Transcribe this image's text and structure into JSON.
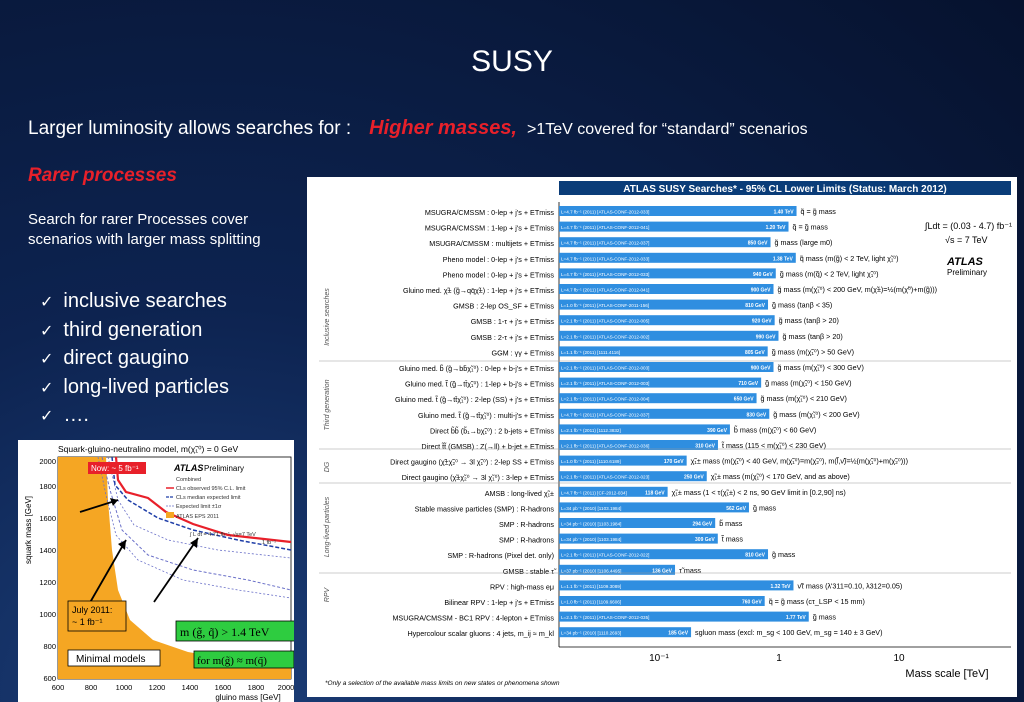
{
  "slide": {
    "title": "SUSY",
    "lum_text": "Larger luminosity allows searches for :",
    "higher_masses": "Higher masses,",
    "covered": ">1TeV covered for “standard” scenarios",
    "rarer": "Rarer processes",
    "search_line1": "Search for rarer Processes cover",
    "search_line2": "scenarios with larger mass splitting",
    "bullets": [
      "inclusive searches",
      "third generation",
      "direct gaugino",
      "long-lived particles",
      "…."
    ]
  },
  "left_plot": {
    "title": "Squark-gluino-neutralino model,  m(χ̃₁⁰) = 0 GeV",
    "ylabel": "squark mass [GeV]",
    "xlabel": "gluino mass [GeV]",
    "atlas": "ATLAS",
    "prelim": "Preliminary",
    "now_label": "Now: ~ 5 fb⁻¹",
    "july_label1": "July 2011:",
    "july_label2": "~ 1 fb⁻¹",
    "minimal": "Minimal models",
    "mass_label": "m (g̃, q̃) > 1.4 TeV",
    "for_label": "for m(g̃) ≈ m(q̃)",
    "legend": [
      "Combined",
      "CLs observed 95% C.L. limit",
      "CLs median expected limit",
      "Expected limit ±1σ",
      "ATLAS EPS 2011"
    ],
    "lumi": "∫ L dt = 4.71 fb⁻¹, √s=7 TeV",
    "lumi2": "1 fb⁻¹",
    "xticks": [
      "600",
      "800",
      "1000",
      "1200",
      "1400",
      "1600",
      "1800",
      "2000"
    ],
    "yticks": [
      "600",
      "800",
      "1000",
      "1200",
      "1400",
      "1600",
      "1800",
      "2000"
    ]
  },
  "right_plot": {
    "header": "ATLAS SUSY Searches* - 95% CL Lower Limits (Status: March 2012)",
    "lumi": "∫Ldt = (0.03 - 4.7) fb⁻¹",
    "sqrt_s": "√s = 7 TeV",
    "atlas": "ATLAS",
    "prelim": "Preliminary",
    "xlabel": "Mass scale [TeV]",
    "xticks": [
      "10⁻¹",
      "1",
      "10"
    ],
    "footnote": "*Only a selection of the available mass limits on new states or phenomena shown",
    "categories": [
      "Inclusive searches",
      "Third generation",
      "DG",
      "Long-lived particles",
      "RPV"
    ],
    "rows": [
      {
        "label": "MSUGRA/CMSSM : 0-lep + j's + ETmiss",
        "ref": "L=4.7 fb⁻¹ (2011) [ATLAS-CONF-2012-033]",
        "val": "1.40 TeV",
        "desc": "q̃ = g̃ mass",
        "tev": 1.4
      },
      {
        "label": "MSUGRA/CMSSM : 1-lep + j's + ETmiss",
        "ref": "L=4.7 fb⁻¹ (2011) [ATLAS-CONF-2012-041]",
        "val": "1.20 TeV",
        "desc": "q̃ = g̃ mass",
        "tev": 1.2
      },
      {
        "label": "MSUGRA/CMSSM : multijets + ETmiss",
        "ref": "L=4.7 fb⁻¹ (2011) [ATLAS-CONF-2012-037]",
        "val": "850 GeV",
        "desc": "g̃ mass  (large m0)",
        "tev": 0.85
      },
      {
        "label": "Pheno model : 0-lep + j's + ETmiss",
        "ref": "L=4.7 fb⁻¹ (2011) [ATLAS-CONF-2012-033]",
        "val": "1.38 TeV",
        "desc": "q̃ mass  (m(g̃) < 2 TeV, light χ̃₁⁰)",
        "tev": 1.38
      },
      {
        "label": "Pheno model : 0-lep + j's + ETmiss",
        "ref": "L=4.7 fb⁻¹ (2011) [ATLAS-CONF-2012-033]",
        "val": "940 GeV",
        "desc": "g̃ mass  (m(q̃) < 2 TeV, light χ̃₁⁰)",
        "tev": 0.94
      },
      {
        "label": "Gluino med. χ̃± (g̃→qq̄χ̃±) : 1-lep + j's + ETmiss",
        "ref": "L=4.7 fb⁻¹ (2011) [ATLAS-CONF-2012-041]",
        "val": "900 GeV",
        "desc": "g̃ mass  (m(χ̃₁⁰) < 200 GeV, m(χ̃±)=½(m(χ̃⁰)+m(g̃)))",
        "tev": 0.9
      },
      {
        "label": "GMSB : 2-lep OS_SF + ETmiss",
        "ref": "L=1.0 fb⁻¹ (2011) [ATLAS-CONF-2011-156]",
        "val": "810 GeV",
        "desc": "g̃ mass  (tanβ < 35)",
        "tev": 0.81
      },
      {
        "label": "GMSB : 1-τ + j's + ETmiss",
        "ref": "L=2.1 fb⁻¹ (2011) [ATLAS-CONF-2012-005]",
        "val": "920 GeV",
        "desc": "g̃ mass  (tanβ > 20)",
        "tev": 0.92
      },
      {
        "label": "GMSB : 2-τ + j's + ETmiss",
        "ref": "L=2.1 fb⁻¹ (2011) [ATLAS-CONF-2012-002]",
        "val": "990 GeV",
        "desc": "g̃ mass  (tanβ > 20)",
        "tev": 0.99
      },
      {
        "label": "GGM : γγ + ETmiss",
        "ref": "L=1.1 fb⁻¹ (2011) [1111.4116]",
        "val": "805 GeV",
        "desc": "g̃ mass  (m(χ̃₁⁰) > 50 GeV)",
        "tev": 0.805
      },
      {
        "label": "Gluino med. b̃ (g̃→bb̄χ̃₁⁰) : 0-lep + b-j's + ETmiss",
        "ref": "L=2.1 fb⁻¹ (2011) [ATLAS-CONF-2012-003]",
        "val": "900 GeV",
        "desc": "g̃ mass  (m(χ̃₁⁰) < 300 GeV)",
        "tev": 0.9
      },
      {
        "label": "Gluino med. t̃ (g̃→tt̄χ̃₁⁰) : 1-lep + b-j's + ETmiss",
        "ref": "L=2.1 fb⁻¹ (2011) [ATLAS-CONF-2012-003]",
        "val": "710 GeV",
        "desc": "g̃ mass  (m(χ̃₁⁰) < 150 GeV)",
        "tev": 0.71
      },
      {
        "label": "Gluino med. t̃ (g̃→tt̄χ̃₁⁰) : 2-lep (SS) + j's + ETmiss",
        "ref": "L=2.1 fb⁻¹ (2011) [ATLAS-CONF-2012-004]",
        "val": "650 GeV",
        "desc": "g̃ mass  (m(χ̃₁⁰) < 210 GeV)",
        "tev": 0.65
      },
      {
        "label": "Gluino med. t̃ (g̃→tt̄χ̃₁⁰) : multi-j's + ETmiss",
        "ref": "L=4.7 fb⁻¹ (2011) [ATLAS-CONF-2012-037]",
        "val": "830 GeV",
        "desc": "g̃ mass  (m(χ̃₁⁰) < 200 GeV)",
        "tev": 0.83
      },
      {
        "label": "Direct b̃b̃ (b̃₁→bχ̃₁⁰) : 2 b-jets + ETmiss",
        "ref": "L=2.1 fb⁻¹ (2011) [1112.3832]",
        "val": "390 GeV",
        "desc": "b̃ mass  (m(χ̃₁⁰) < 60 GeV)",
        "tev": 0.39
      },
      {
        "label": "Direct t̃t̃ (GMSB) : Z(→ll) + b-jet + ETmiss",
        "ref": "L=2.1 fb⁻¹ (2011) [ATLAS-CONF-2012-036]",
        "val": "310 GeV",
        "desc": "t̃ mass  (115 < m(χ̃₁⁰) < 230 GeV)",
        "tev": 0.31
      },
      {
        "label": "Direct gaugino (χ̃±χ̃₂⁰ → 3l χ̃₁⁰) : 2-lep SS + ETmiss",
        "ref": "L=1.0 fb⁻¹ (2011) [1110.6189]",
        "val": "170 GeV",
        "desc": "χ̃₁± mass  (m(χ̃₁⁰) < 40 GeV, m(χ̃₁⁰)=m(χ̃₂⁰), m(l̃,ν̃)=½(m(χ̃₁⁰)+m(χ̃₂⁰)))",
        "tev": 0.17
      },
      {
        "label": "Direct gaugino (χ̃±χ̃₂⁰ → 3l χ̃₁⁰) : 3-lep + ETmiss",
        "ref": "L=2.1 fb⁻¹ (2011) [ATLAS-CONF-2012-023]",
        "val": "250 GeV",
        "desc": "χ̃₁± mass  (m(χ̃₁⁰) < 170 GeV, and as above)",
        "tev": 0.25
      },
      {
        "label": "AMSB : long-lived χ̃₁±",
        "ref": "L=4.7 fb⁻¹ (2011) [CF-2012-034]",
        "val": "118 GeV",
        "desc": "χ̃₁± mass  (1 < τ(χ̃₁±) < 2 ns, 90 GeV limit in [0.2,90] ns)",
        "tev": 0.118
      },
      {
        "label": "Stable massive particles (SMP) : R-hadrons",
        "ref": "L=34 pb⁻¹ (2010) [1103.1984]",
        "val": "562 GeV",
        "desc": "g̃ mass",
        "tev": 0.562
      },
      {
        "label": "SMP : R-hadrons",
        "ref": "L=34 pb⁻¹ (2010) [1103.1984]",
        "val": "294 GeV",
        "desc": "b̃ mass",
        "tev": 0.294
      },
      {
        "label": "SMP : R-hadrons",
        "ref": "L=34 pb⁻¹ (2010) [1103.1984]",
        "val": "309 GeV",
        "desc": "t̃ mass",
        "tev": 0.309
      },
      {
        "label": "SMP : R-hadrons (Pixel det. only)",
        "ref": "L=2.1 fb⁻¹ (2011) [ATLAS-CONF-2012-022]",
        "val": "810 GeV",
        "desc": "g̃ mass",
        "tev": 0.81
      },
      {
        "label": "GMSB : stable τ̃",
        "ref": "L=37 pb⁻¹ (2010) [1106.4495]",
        "val": "136 GeV",
        "desc": "τ̃ mass",
        "tev": 0.136
      },
      {
        "label": "RPV : high-mass eμ",
        "ref": "L=1.1 fb⁻¹ (2011) [1109.3089]",
        "val": "1.32 TeV",
        "desc": "ν̃τ mass  (λ'311=0.10, λ312=0.05)",
        "tev": 1.32
      },
      {
        "label": "Bilinear RPV : 1-lep + j's + ETmiss",
        "ref": "L=1.0 fb⁻¹ (2011) [1109.6606]",
        "val": "760 GeV",
        "desc": "q̃ = g̃ mass  (cτ_LSP < 15 mm)",
        "tev": 0.76
      },
      {
        "label": "MSUGRA/CMSSM - BC1 RPV : 4-lepton + ETmiss",
        "ref": "L=2.1 fb⁻¹ (2011) [ATLAS-CONF-2012-035]",
        "val": "1.77 TeV",
        "desc": "g̃ mass",
        "tev": 1.77
      },
      {
        "label": "Hypercolour scalar gluons : 4 jets, m_ij ≈ m_kl",
        "ref": "L=34 pb⁻¹ (2010) [1110.2693]",
        "val": "185 GeV",
        "desc": "sgluon mass  (excl: m_sg < 100 GeV, m_sg = 140 ± 3 GeV)",
        "tev": 0.185
      }
    ]
  },
  "colors": {
    "accent_red": "#e8202a",
    "bar_blue": "#2f8ee0",
    "bar_dark": "#0a3c78",
    "orange": "#f5a623",
    "green_box": "#2ecc40"
  }
}
